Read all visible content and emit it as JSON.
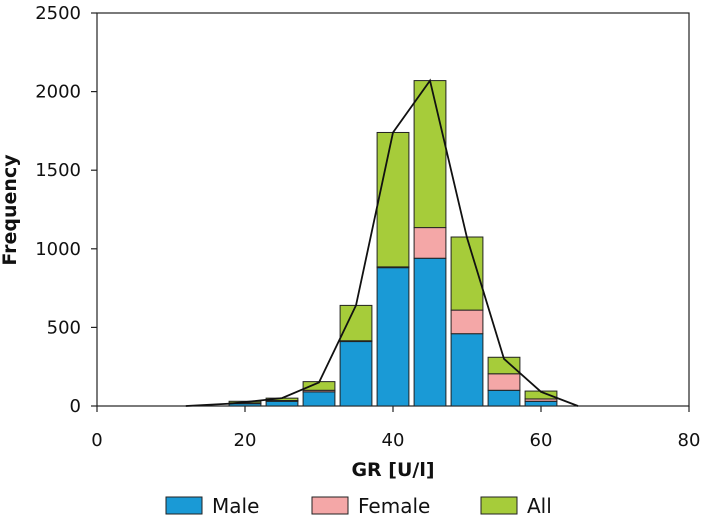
{
  "chart_data": {
    "type": "bar",
    "stacked": true,
    "title": "",
    "xlabel": "GR [U/l]",
    "ylabel": "Frequency",
    "xlim": [
      0,
      80
    ],
    "ylim": [
      0,
      2500
    ],
    "xticks": [
      0,
      20,
      40,
      60,
      80
    ],
    "yticks": [
      0,
      500,
      1000,
      1500,
      2000,
      2500
    ],
    "grid": false,
    "legend_position": "bottom",
    "x": [
      20,
      25,
      30,
      35,
      40,
      45,
      50,
      55,
      60
    ],
    "series": [
      {
        "name": "Male",
        "color": "#1a9ad6",
        "values": [
          15,
          30,
          90,
          410,
          880,
          940,
          460,
          100,
          30
        ]
      },
      {
        "name": "Female",
        "color": "#f4a7a7",
        "values": [
          5,
          5,
          10,
          5,
          5,
          195,
          150,
          105,
          15
        ]
      },
      {
        "name": "All",
        "color": "#a6cc3a",
        "values": [
          10,
          15,
          55,
          225,
          855,
          935,
          465,
          105,
          50
        ]
      }
    ],
    "line": {
      "name": "All",
      "x": [
        12,
        18,
        25,
        30,
        35,
        40,
        45,
        50,
        55,
        60,
        65
      ],
      "y": [
        0,
        15,
        50,
        150,
        640,
        1740,
        2070,
        1070,
        300,
        90,
        0
      ]
    }
  }
}
